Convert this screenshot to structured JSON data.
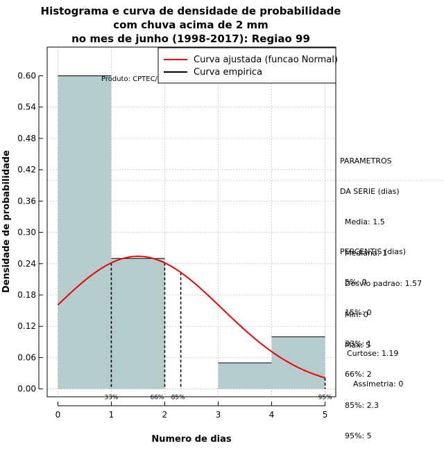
{
  "chart_data": {
    "type": "bar",
    "title_lines": [
      "Histograma e curva de densidade de probabilidade",
      "com chuva acima de 2 mm",
      "no mes de junho (1998-2017): Regiao 99"
    ],
    "xlabel": "Numero de dias",
    "ylabel": "Densidade de probabilidade",
    "xlim": [
      -0.2,
      5.2
    ],
    "ylim": [
      -0.015,
      0.655
    ],
    "xticks": [
      0,
      1,
      2,
      3,
      4,
      5
    ],
    "yticks": [
      0.0,
      0.06,
      0.12,
      0.18,
      0.24,
      0.3,
      0.36,
      0.42,
      0.48,
      0.54,
      0.6
    ],
    "ytick_labels": [
      "0.00",
      "0.06",
      "0.12",
      "0.18",
      "0.24",
      "0.30",
      "0.36",
      "0.42",
      "0.48",
      "0.54",
      "0.60"
    ],
    "bins": [
      {
        "from": 0,
        "to": 1,
        "density": 0.6
      },
      {
        "from": 1,
        "to": 2,
        "density": 0.25
      },
      {
        "from": 2,
        "to": 3,
        "density": 0.0
      },
      {
        "from": 3,
        "to": 4,
        "density": 0.05
      },
      {
        "from": 4,
        "to": 5,
        "density": 0.1
      }
    ],
    "normal_fit": {
      "mean": 1.5,
      "sd": 1.57,
      "x_from": 0,
      "x_to": 5
    },
    "percentile_lines": [
      {
        "x": 1,
        "label": "33%"
      },
      {
        "x": 2,
        "label": "66%"
      },
      {
        "x": 2.3,
        "label": "85%"
      },
      {
        "x": 5,
        "label": "95%"
      }
    ],
    "legend": {
      "position": "top-right",
      "entries": [
        {
          "label": "Curva ajustada (funcao Normal)",
          "color": "#ee0000"
        },
        {
          "label": "Curva empirica",
          "color": "#000000"
        }
      ]
    },
    "annotation": "Produto: CPTEC/INPE",
    "grid": true,
    "colors": {
      "bar_fill": "#b4cccc",
      "curve": "#ee0000",
      "grid": "#c0c0c0"
    }
  },
  "stats_panel": {
    "params": {
      "heading": [
        "PARAMETROS",
        "DA SERIE (dias)"
      ],
      "lines": [
        "Media: 1.5",
        "Mediana: 1",
        "Desvio padrao: 1.57",
        "Min: 0",
        "Max: 5"
      ]
    },
    "percentis": {
      "heading": "PERCENTIS (dias)",
      "lines": [
        "5%: 0",
        "15%: 0",
        "33%: 1",
        "66%: 2",
        "85%: 2.3",
        "95%: 5"
      ]
    },
    "moments": {
      "curtose": "Curtose: 1.19",
      "assimetria": "Assimetria: 0"
    }
  }
}
